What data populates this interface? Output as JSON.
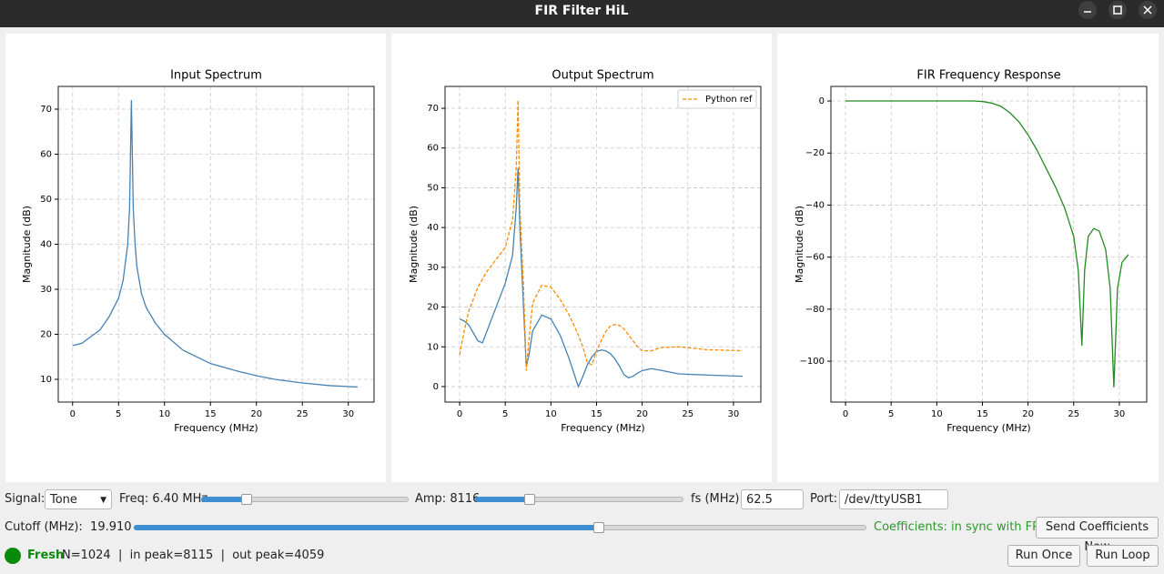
{
  "window": {
    "title": "FIR Filter HiL"
  },
  "chart_data": [
    {
      "type": "line",
      "title": "Input Spectrum",
      "xlabel": "Frequency (MHz)",
      "ylabel": "Magnitude (dB)",
      "x": [
        0,
        1,
        2,
        3,
        4,
        5,
        5.5,
        6,
        6.2,
        6.4,
        6.6,
        6.8,
        7,
        7.5,
        8,
        9,
        10,
        12,
        15,
        18,
        20,
        22,
        25,
        28,
        31
      ],
      "series": [
        {
          "color": "#4682b4",
          "style": "solid",
          "values": [
            17.5,
            18,
            19.5,
            21,
            24,
            28,
            32,
            40,
            48,
            72,
            48,
            40,
            35,
            29,
            26,
            22.5,
            20,
            16.5,
            13.5,
            11.8,
            10.8,
            10,
            9.2,
            8.6,
            8.3
          ]
        }
      ],
      "xlim": [
        -1.56,
        32.8
      ],
      "ylim": [
        4.95,
        75.05
      ],
      "xticks": [
        0,
        5,
        10,
        15,
        20,
        25,
        30
      ],
      "yticks": [
        10,
        20,
        30,
        40,
        50,
        60,
        70
      ],
      "grid": true
    },
    {
      "type": "line",
      "title": "Output Spectrum",
      "xlabel": "Frequency (MHz)",
      "ylabel": "Magnitude (dB)",
      "x": [
        0,
        0.5,
        1,
        2,
        2.5,
        3,
        4,
        5,
        5.8,
        6.2,
        6.4,
        6.6,
        7,
        7.3,
        7.6,
        8,
        9,
        10,
        11,
        12,
        13,
        13.5,
        14,
        14.5,
        15,
        15.5,
        16,
        16.5,
        17,
        17.5,
        18,
        18.5,
        19,
        19.5,
        20,
        21,
        22,
        24,
        27,
        31
      ],
      "series": [
        {
          "color": "#4682b4",
          "style": "solid",
          "values": [
            17,
            16.5,
            15.5,
            11.5,
            11,
            14,
            20,
            26,
            33,
            45,
            55,
            40,
            20,
            5,
            8,
            14,
            18,
            17,
            13,
            7,
            0,
            2.5,
            5.5,
            7.5,
            8.8,
            9.2,
            9,
            8.3,
            7,
            5.2,
            3,
            2.2,
            2.6,
            3.4,
            4,
            4.5,
            4.1,
            3.2,
            2.9,
            2.6
          ]
        },
        {
          "name": "Python ref",
          "color": "#ff8c00",
          "style": "dashed",
          "values": [
            8,
            14,
            19,
            25,
            27,
            29,
            32,
            35,
            42,
            55,
            72,
            45,
            25,
            4,
            12,
            21,
            25.5,
            25,
            22,
            18,
            13,
            10,
            6,
            5.5,
            9,
            11.5,
            13.8,
            15.2,
            15.6,
            15.4,
            14.5,
            13,
            11.5,
            10,
            9,
            9,
            9.8,
            10,
            9.3,
            9
          ]
        }
      ],
      "xlim": [
        -1.6,
        33.0
      ],
      "ylim": [
        -3.9,
        75.5
      ],
      "xticks": [
        0,
        5,
        10,
        15,
        20,
        25,
        30
      ],
      "yticks": [
        0,
        10,
        20,
        30,
        40,
        50,
        60,
        70
      ],
      "grid": true,
      "legend": "upper right"
    },
    {
      "type": "line",
      "title": "FIR Frequency Response",
      "xlabel": "Frequency (MHz)",
      "ylabel": "Magnitude (dB)",
      "x": [
        0,
        5,
        10,
        14,
        15,
        16,
        17,
        18,
        19,
        20,
        21,
        22,
        23,
        24,
        25,
        25.5,
        25.9,
        26.2,
        26.6,
        27.2,
        27.8,
        28.5,
        29,
        29.4,
        29.8,
        30.3,
        31
      ],
      "series": [
        {
          "color": "#228b22",
          "style": "solid",
          "values": [
            0,
            0,
            0,
            0,
            -0.2,
            -0.8,
            -2,
            -4.5,
            -8,
            -13,
            -19,
            -26,
            -33,
            -41,
            -52,
            -65,
            -94,
            -65,
            -52,
            -49,
            -50,
            -57,
            -72,
            -110,
            -72,
            -62,
            -59
          ]
        }
      ],
      "xlim": [
        -1.6,
        33.0
      ],
      "ylim": [
        -115.7,
        5.6
      ],
      "xticks": [
        0,
        5,
        10,
        15,
        20,
        25,
        30
      ],
      "yticks": [
        {
          "value": -100,
          "label": "−100"
        },
        {
          "value": -80,
          "label": "−80"
        },
        {
          "value": -60,
          "label": "−60"
        },
        {
          "value": -40,
          "label": "−40"
        },
        {
          "value": -20,
          "label": "−20"
        },
        0
      ],
      "grid": true
    }
  ],
  "controls": {
    "signal_label": "Signal:",
    "signal_value": "Tone",
    "freq_label": "Freq: 6.40 MHz",
    "amp_label": "Amp: 8116",
    "fs_label": "fs (MHz):",
    "fs_value": "62.5",
    "port_label": "Port:",
    "port_value": "/dev/ttyUSB1",
    "cutoff_label": "Cutoff (MHz):  19.910",
    "coeff_status": "Coefficients: in sync with FPGA",
    "send_button": "Send Coefficients Now",
    "status_word": "Fresh",
    "status_text": "N=1024  |  in peak=8115  |  out peak=4059",
    "run_once": "Run Once",
    "run_loop": "Run Loop"
  }
}
